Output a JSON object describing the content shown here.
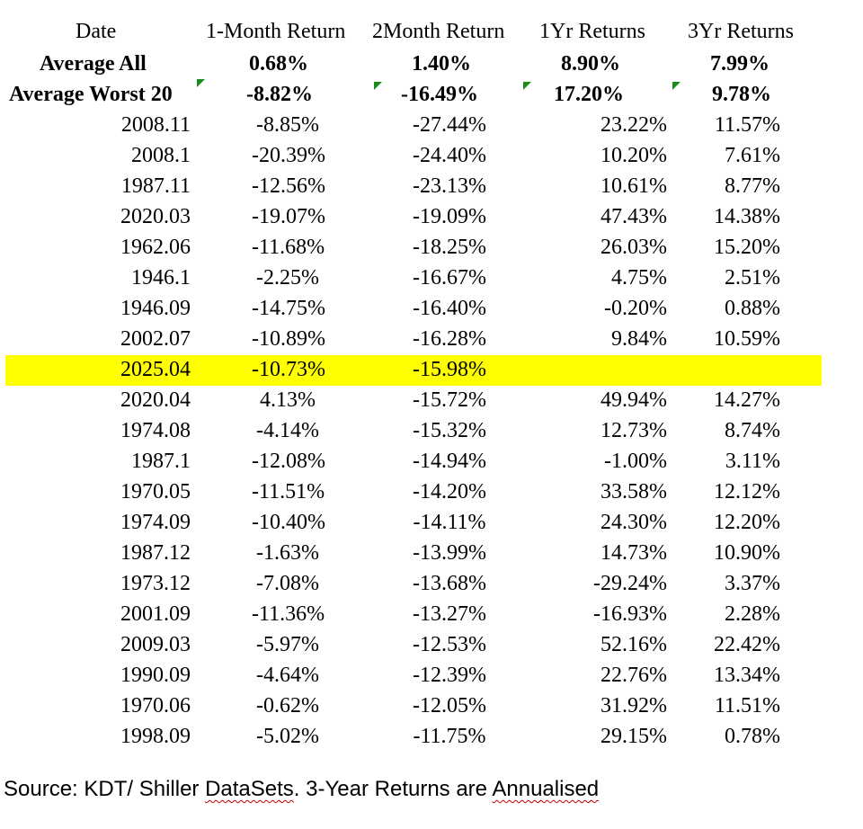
{
  "headers": {
    "date": "Date",
    "m1": "1-Month Return",
    "m2": "2Month Return",
    "y1": "1Yr Returns",
    "y3": "3Yr Returns"
  },
  "average_all": {
    "label": "Average All",
    "m1": "0.68%",
    "m2": "1.40%",
    "y1": "8.90%",
    "y3": "7.99%"
  },
  "average_worst": {
    "label": "Average Worst 20",
    "m1": "-8.82%",
    "m2": "-16.49%",
    "y1": "17.20%",
    "y3": "9.78%"
  },
  "rows": [
    {
      "date": "2008.11",
      "m1": "-8.85%",
      "m2": "-27.44%",
      "y1": "23.22%",
      "y3": "11.57%"
    },
    {
      "date": "2008.1",
      "m1": "-20.39%",
      "m2": "-24.40%",
      "y1": "10.20%",
      "y3": "7.61%"
    },
    {
      "date": "1987.11",
      "m1": "-12.56%",
      "m2": "-23.13%",
      "y1": "10.61%",
      "y3": "8.77%"
    },
    {
      "date": "2020.03",
      "m1": "-19.07%",
      "m2": "-19.09%",
      "y1": "47.43%",
      "y3": "14.38%"
    },
    {
      "date": "1962.06",
      "m1": "-11.68%",
      "m2": "-18.25%",
      "y1": "26.03%",
      "y3": "15.20%"
    },
    {
      "date": "1946.1",
      "m1": "-2.25%",
      "m2": "-16.67%",
      "y1": "4.75%",
      "y3": "2.51%"
    },
    {
      "date": "1946.09",
      "m1": "-14.75%",
      "m2": "-16.40%",
      "y1": "-0.20%",
      "y3": "0.88%"
    },
    {
      "date": "2002.07",
      "m1": "-10.89%",
      "m2": "-16.28%",
      "y1": "9.84%",
      "y3": "10.59%"
    },
    {
      "date": "2025.04",
      "m1": "-10.73%",
      "m2": "-15.98%",
      "y1": "",
      "y3": "",
      "highlight": true
    },
    {
      "date": "2020.04",
      "m1": "4.13%",
      "m2": "-15.72%",
      "y1": "49.94%",
      "y3": "14.27%"
    },
    {
      "date": "1974.08",
      "m1": "-4.14%",
      "m2": "-15.32%",
      "y1": "12.73%",
      "y3": "8.74%"
    },
    {
      "date": "1987.1",
      "m1": "-12.08%",
      "m2": "-14.94%",
      "y1": "-1.00%",
      "y3": "3.11%"
    },
    {
      "date": "1970.05",
      "m1": "-11.51%",
      "m2": "-14.20%",
      "y1": "33.58%",
      "y3": "12.12%"
    },
    {
      "date": "1974.09",
      "m1": "-10.40%",
      "m2": "-14.11%",
      "y1": "24.30%",
      "y3": "12.20%"
    },
    {
      "date": "1987.12",
      "m1": "-1.63%",
      "m2": "-13.99%",
      "y1": "14.73%",
      "y3": "10.90%"
    },
    {
      "date": "1973.12",
      "m1": "-7.08%",
      "m2": "-13.68%",
      "y1": "-29.24%",
      "y3": "3.37%"
    },
    {
      "date": "2001.09",
      "m1": "-11.36%",
      "m2": "-13.27%",
      "y1": "-16.93%",
      "y3": "2.28%"
    },
    {
      "date": "2009.03",
      "m1": "-5.97%",
      "m2": "-12.53%",
      "y1": "52.16%",
      "y3": "22.42%"
    },
    {
      "date": "1990.09",
      "m1": "-4.64%",
      "m2": "-12.39%",
      "y1": "22.76%",
      "y3": "13.34%"
    },
    {
      "date": "1970.06",
      "m1": "-0.62%",
      "m2": "-12.05%",
      "y1": "31.92%",
      "y3": "11.51%"
    },
    {
      "date": "1998.09",
      "m1": "-5.02%",
      "m2": "-11.75%",
      "y1": "29.15%",
      "y3": "0.78%"
    }
  ],
  "source": {
    "prefix": "Source: KDT/ Shiller ",
    "word1": "DataSets",
    "middle": ". 3-Year Returns are ",
    "word2": "Annualised"
  },
  "colors": {
    "highlight": "#ffff00",
    "error_flag": "#1a8c1a",
    "spellcheck": "#c00000"
  }
}
